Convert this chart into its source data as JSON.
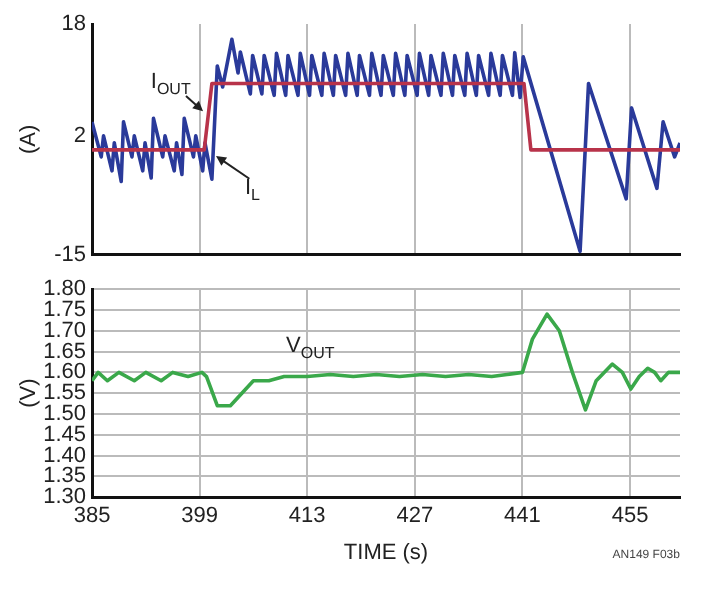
{
  "chart_data": [
    {
      "type": "line",
      "ylabel": "(A)",
      "xlim": [
        385,
        461.5
      ],
      "xticks": [
        385,
        399,
        413,
        427,
        441,
        455
      ],
      "ylim": [
        -15,
        18
      ],
      "yticks": [
        -15,
        2,
        18
      ],
      "grid": "x",
      "tick_labels": "y",
      "legend": false,
      "marker": "none",
      "line_style": "solid",
      "series": [
        {
          "name": "I$_{OUT}$",
          "color": "#b8334a",
          "x": [
            385,
            399.6,
            400.6,
            441.2,
            442.1,
            461.5
          ],
          "values": [
            0,
            0,
            9.5,
            9.5,
            0,
            0
          ]
        },
        {
          "name": "I$_{L}$",
          "color": "#2a3a9a",
          "x": [
            385,
            386.2,
            386.5,
            387.6,
            387.9,
            388.8,
            389.1,
            390.2,
            390.5,
            391.6,
            391.9,
            392.7,
            393.0,
            394.2,
            394.5,
            395.7,
            396.0,
            396.7,
            397.0,
            398.2,
            398.5,
            399.4,
            399.7,
            400.6,
            401.3,
            402.0,
            403.2,
            404.0,
            404.3,
            405.6,
            405.9,
            407.1,
            407.4,
            408.7,
            409.0,
            410.2,
            410.5,
            411.8,
            412.1,
            413.3,
            413.6,
            414.9,
            415.2,
            416.4,
            416.7,
            418.0,
            418.3,
            419.5,
            419.8,
            421.1,
            421.4,
            422.6,
            422.9,
            424.2,
            424.5,
            425.7,
            426.0,
            427.3,
            427.6,
            428.8,
            429.1,
            430.4,
            430.7,
            431.9,
            432.2,
            433.5,
            433.8,
            435.0,
            435.3,
            436.6,
            436.9,
            438.1,
            438.4,
            439.7,
            440.0,
            440.7,
            441.1,
            448.5,
            449.6,
            454.5,
            455.2,
            458.5,
            459.3,
            460.8,
            461.5
          ],
          "values": [
            4,
            -1,
            2,
            -3,
            1,
            -4.5,
            4,
            -1,
            2,
            -3,
            1,
            -4,
            4.5,
            -1,
            2,
            -3,
            1,
            -3.5,
            4.5,
            -1,
            2,
            -3,
            1,
            -4.2,
            12,
            9,
            15.8,
            11,
            14,
            8,
            13.5,
            8,
            13.5,
            7.8,
            13.8,
            7.8,
            13.5,
            7.8,
            13.8,
            7.8,
            13.5,
            7.8,
            13.8,
            7.8,
            13.5,
            7.8,
            13.8,
            7.8,
            13.5,
            7.8,
            13.8,
            7.8,
            13.5,
            7.8,
            13.8,
            7.8,
            13.5,
            7.8,
            13.8,
            7.8,
            13.5,
            7.8,
            13.8,
            7.8,
            13.5,
            7.8,
            13.8,
            7.8,
            13.5,
            7.8,
            13.8,
            7.8,
            13.5,
            7.8,
            13.9,
            7.5,
            13.3,
            -14.5,
            9.5,
            -7,
            6,
            -5.5,
            4,
            -1,
            1
          ]
        }
      ]
    },
    {
      "type": "line",
      "ylabel": "(V)",
      "xlabel": "TIME (s)",
      "xlim": [
        385,
        461.5
      ],
      "xticks": [
        385,
        399,
        413,
        427,
        441,
        455
      ],
      "ylim": [
        1.3,
        1.8
      ],
      "yticks": [
        {
          "value": 1.3,
          "label": "1.30"
        },
        {
          "value": 1.35,
          "label": "1.35"
        },
        {
          "value": 1.4,
          "label": "1.40"
        },
        {
          "value": 1.45,
          "label": "1.45"
        },
        {
          "value": 1.5,
          "label": "1.50"
        },
        {
          "value": 1.55,
          "label": "1.55"
        },
        {
          "value": 1.6,
          "label": "1.60"
        },
        {
          "value": 1.65,
          "label": "1.65"
        },
        {
          "value": 1.7,
          "label": "1.70"
        },
        {
          "value": 1.75,
          "label": "1.75"
        },
        {
          "value": 1.8,
          "label": "1.80"
        }
      ],
      "grid": true,
      "legend": false,
      "marker": "none",
      "line_style": "solid",
      "annotations": [
        "AN149 F03b"
      ],
      "series": [
        {
          "name": "V$_{OUT}$",
          "color": "#3aa84a",
          "x": [
            385,
            385.8,
            387,
            388.5,
            390.5,
            392,
            394,
            395.5,
            397.5,
            399.3,
            399.9,
            401.3,
            403,
            404.5,
            406,
            408,
            410,
            413,
            416,
            419,
            422,
            425,
            428,
            431,
            434,
            437,
            439,
            441,
            442.3,
            444.2,
            445.8,
            447.5,
            449.2,
            450.6,
            452.7,
            454,
            455.1,
            456.2,
            457.3,
            458.2,
            459,
            460,
            461.5
          ],
          "values": [
            1.58,
            1.6,
            1.58,
            1.6,
            1.58,
            1.6,
            1.58,
            1.6,
            1.59,
            1.6,
            1.59,
            1.52,
            1.52,
            1.55,
            1.58,
            1.58,
            1.59,
            1.59,
            1.595,
            1.59,
            1.595,
            1.59,
            1.595,
            1.59,
            1.595,
            1.59,
            1.595,
            1.6,
            1.68,
            1.74,
            1.7,
            1.6,
            1.51,
            1.58,
            1.62,
            1.6,
            1.56,
            1.59,
            1.61,
            1.6,
            1.58,
            1.6,
            1.6
          ]
        }
      ]
    }
  ]
}
